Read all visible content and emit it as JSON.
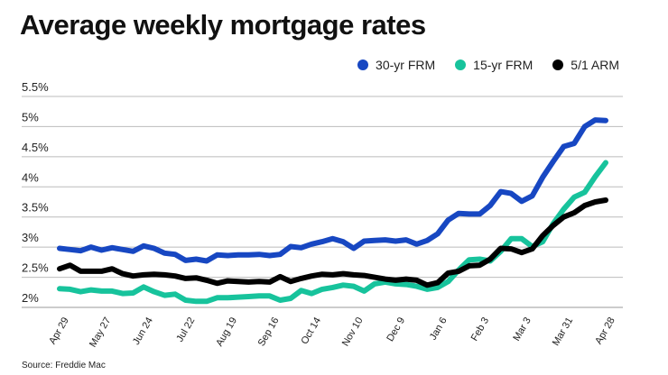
{
  "title": "Average weekly mortgage rates",
  "source": "Source: Freddie Mac",
  "chart_data": {
    "type": "line",
    "title": "Average weekly mortgage rates",
    "ylim": [
      2,
      5.5
    ],
    "yticks": [
      2,
      2.5,
      3,
      3.5,
      4,
      4.5,
      5,
      5.5
    ],
    "ytick_labels": [
      "2%",
      "2.5%",
      "3%",
      "3.5%",
      "4%",
      "4.5%",
      "5%",
      "5.5%"
    ],
    "xtick_labels": [
      "Apr 29",
      "May 27",
      "Jun 24",
      "Jul 22",
      "Aug 19",
      "Sep 16",
      "Oct 14",
      "Nov 10",
      "Dec 9",
      "Jan 6",
      "Feb 3",
      "Mar 3",
      "Mar 31",
      "Apr 28"
    ],
    "grid": true,
    "legend_position": "top-right",
    "series": [
      {
        "name": "30-yr FRM",
        "color": "#1747c2",
        "values": [
          2.98,
          2.96,
          2.94,
          3.0,
          2.95,
          2.99,
          2.96,
          2.93,
          3.02,
          2.98,
          2.9,
          2.88,
          2.78,
          2.8,
          2.77,
          2.87,
          2.86,
          2.87,
          2.87,
          2.88,
          2.86,
          2.88,
          3.01,
          2.99,
          3.05,
          3.09,
          3.14,
          3.09,
          2.98,
          3.1,
          3.11,
          3.12,
          3.1,
          3.12,
          3.05,
          3.11,
          3.22,
          3.45,
          3.56,
          3.55,
          3.55,
          3.69,
          3.92,
          3.89,
          3.76,
          3.85,
          4.16,
          4.42,
          4.67,
          4.72,
          5.0,
          5.11,
          5.1
        ]
      },
      {
        "name": "15-yr FRM",
        "color": "#17c39c",
        "values": [
          2.31,
          2.3,
          2.26,
          2.29,
          2.27,
          2.27,
          2.23,
          2.24,
          2.34,
          2.26,
          2.2,
          2.22,
          2.12,
          2.1,
          2.1,
          2.16,
          2.16,
          2.17,
          2.18,
          2.19,
          2.19,
          2.12,
          2.15,
          2.28,
          2.23,
          2.3,
          2.33,
          2.37,
          2.35,
          2.27,
          2.39,
          2.42,
          2.39,
          2.38,
          2.35,
          2.3,
          2.33,
          2.43,
          2.62,
          2.79,
          2.8,
          2.77,
          2.93,
          3.14,
          3.14,
          3.01,
          3.09,
          3.39,
          3.63,
          3.83,
          3.91,
          4.17,
          4.4
        ]
      },
      {
        "name": "5/1 ARM",
        "color": "#000000",
        "values": [
          2.64,
          2.7,
          2.6,
          2.6,
          2.6,
          2.64,
          2.56,
          2.52,
          2.54,
          2.55,
          2.54,
          2.52,
          2.48,
          2.49,
          2.45,
          2.4,
          2.44,
          2.43,
          2.42,
          2.43,
          2.42,
          2.51,
          2.43,
          2.48,
          2.52,
          2.55,
          2.54,
          2.56,
          2.54,
          2.53,
          2.5,
          2.47,
          2.45,
          2.47,
          2.45,
          2.37,
          2.41,
          2.57,
          2.6,
          2.69,
          2.7,
          2.8,
          2.98,
          2.97,
          2.91,
          2.97,
          3.19,
          3.36,
          3.5,
          3.57,
          3.69,
          3.75,
          3.78
        ]
      }
    ]
  }
}
